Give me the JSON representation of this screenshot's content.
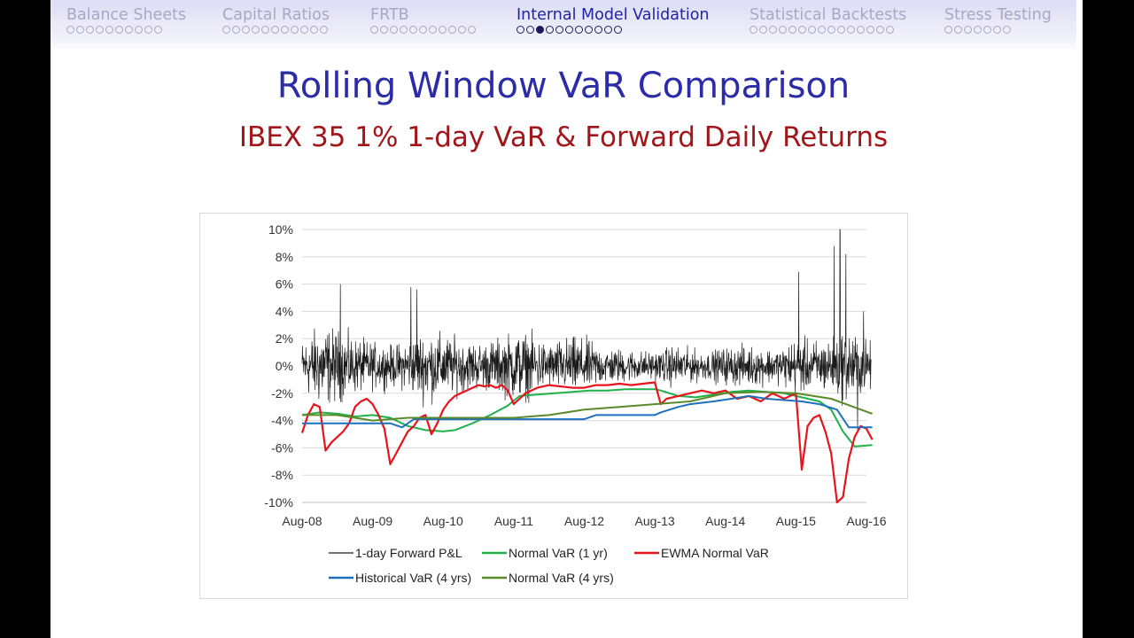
{
  "nav": {
    "sections": [
      {
        "label": "Balance Sheets",
        "dots": 10,
        "filled": -1,
        "active": false
      },
      {
        "label": "Capital Ratios",
        "dots": 11,
        "filled": -1,
        "active": false
      },
      {
        "label": "FRTB",
        "dots": 11,
        "filled": -1,
        "active": false
      },
      {
        "label": "Internal Model Validation",
        "dots": 11,
        "filled": 2,
        "active": true
      },
      {
        "label": "Statistical Backtests",
        "dots": 15,
        "filled": -1,
        "active": false
      },
      {
        "label": "Stress Testing",
        "dots": 7,
        "filled": -1,
        "active": false
      }
    ]
  },
  "slide": {
    "title": "Rolling Window VaR Comparison",
    "subtitle": "IBEX 35 1% 1-day VaR & Forward Daily Returns"
  },
  "colors": {
    "pnl": "#1a1a1a",
    "normal_1yr": "#1fb14b",
    "ewma": "#e8141c",
    "historical_4yr": "#1f6fbf",
    "normal_4yr": "#5a8a2a"
  },
  "chart_data": {
    "type": "line",
    "title": "",
    "xlabel": "",
    "ylabel": "",
    "ylim": [
      -10,
      10
    ],
    "y_unit": "%",
    "y_ticks": [
      "10%",
      "8%",
      "6%",
      "4%",
      "2%",
      "0%",
      "-2%",
      "-4%",
      "-6%",
      "-8%",
      "-10%"
    ],
    "y_tick_values": [
      10,
      8,
      6,
      4,
      2,
      0,
      -2,
      -4,
      -6,
      -8,
      -10
    ],
    "xlim": [
      "2008-08",
      "2016-09"
    ],
    "x_ticks": [
      "Aug-08",
      "Aug-09",
      "Aug-10",
      "Aug-11",
      "Aug-12",
      "Aug-13",
      "Aug-14",
      "Aug-15",
      "Aug-16"
    ],
    "x_tick_values": [
      "2008-08",
      "2009-08",
      "2010-08",
      "2011-08",
      "2012-08",
      "2013-08",
      "2014-08",
      "2015-08",
      "2016-08"
    ],
    "grid": "horizontal",
    "legend_position": "bottom",
    "series": [
      {
        "name": "1-day Forward P&L",
        "color_key": "pnl",
        "volatility_envelope": {
          "x": [
            "2008-08",
            "2008-11",
            "2009-02",
            "2009-05",
            "2009-08",
            "2009-11",
            "2010-02",
            "2010-05",
            "2010-08",
            "2010-11",
            "2011-02",
            "2011-05",
            "2011-08",
            "2011-11",
            "2012-02",
            "2012-05",
            "2012-08",
            "2012-11",
            "2013-02",
            "2013-05",
            "2013-08",
            "2013-11",
            "2014-02",
            "2014-05",
            "2014-08",
            "2014-11",
            "2015-02",
            "2015-05",
            "2015-08",
            "2015-11",
            "2016-02",
            "2016-05",
            "2016-08"
          ],
          "amplitude": [
            1.6,
            2.6,
            2.3,
            1.8,
            1.5,
            1.3,
            1.6,
            2.3,
            2.0,
            1.7,
            1.5,
            1.7,
            2.2,
            2.0,
            1.4,
            1.8,
            1.8,
            1.2,
            1.1,
            1.0,
            0.9,
            1.3,
            1.1,
            0.9,
            1.2,
            1.3,
            1.2,
            1.1,
            1.8,
            1.6,
            1.8,
            2.4,
            1.6
          ]
        },
        "spikes": [
          {
            "x": "2009-02",
            "y": 6.0
          },
          {
            "x": "2010-02",
            "y": 5.8
          },
          {
            "x": "2010-03",
            "y": 5.6
          },
          {
            "x": "2016-03",
            "y": 10.0
          },
          {
            "x": "2016-02",
            "y": 8.8
          },
          {
            "x": "2016-04",
            "y": 8.2
          },
          {
            "x": "2015-08",
            "y": 6.9
          },
          {
            "x": "2016-07",
            "y": 4.0
          },
          {
            "x": "2016-06",
            "y": -4.8
          }
        ]
      },
      {
        "name": "Normal VaR (1 yr)",
        "color_key": "normal_1yr",
        "points": [
          [
            "2008-08",
            -3.6
          ],
          [
            "2008-11",
            -3.4
          ],
          [
            "2009-02",
            -3.5
          ],
          [
            "2009-05",
            -3.7
          ],
          [
            "2009-08",
            -3.6
          ],
          [
            "2009-11",
            -3.8
          ],
          [
            "2010-02",
            -4.4
          ],
          [
            "2010-05",
            -4.7
          ],
          [
            "2010-08",
            -4.8
          ],
          [
            "2010-10",
            -4.7
          ],
          [
            "2011-01",
            -4.2
          ],
          [
            "2011-04",
            -3.6
          ],
          [
            "2011-07",
            -2.9
          ],
          [
            "2011-09",
            -2.2
          ],
          [
            "2011-12",
            -2.1
          ],
          [
            "2012-03",
            -2.0
          ],
          [
            "2012-06",
            -1.9
          ],
          [
            "2012-09",
            -1.8
          ],
          [
            "2012-12",
            -1.8
          ],
          [
            "2013-03",
            -1.7
          ],
          [
            "2013-06",
            -1.7
          ],
          [
            "2013-08",
            -1.7
          ],
          [
            "2013-09",
            -1.8
          ],
          [
            "2013-12",
            -2.2
          ],
          [
            "2014-03",
            -2.3
          ],
          [
            "2014-06",
            -2.1
          ],
          [
            "2014-09",
            -1.9
          ],
          [
            "2014-12",
            -1.8
          ],
          [
            "2015-03",
            -1.9
          ],
          [
            "2015-06",
            -2.0
          ],
          [
            "2015-09",
            -2.3
          ],
          [
            "2015-12",
            -2.6
          ],
          [
            "2016-02",
            -3.2
          ],
          [
            "2016-04",
            -4.8
          ],
          [
            "2016-06",
            -5.9
          ],
          [
            "2016-09",
            -5.8
          ]
        ]
      },
      {
        "name": "EWMA Normal VaR",
        "color_key": "ewma",
        "points": [
          [
            "2008-08",
            -4.9
          ],
          [
            "2008-09",
            -3.6
          ],
          [
            "2008-10",
            -2.8
          ],
          [
            "2008-11",
            -3.0
          ],
          [
            "2008-12",
            -6.2
          ],
          [
            "2009-01",
            -5.6
          ],
          [
            "2009-02",
            -5.2
          ],
          [
            "2009-03",
            -4.8
          ],
          [
            "2009-04",
            -4.2
          ],
          [
            "2009-05",
            -3.0
          ],
          [
            "2009-06",
            -2.6
          ],
          [
            "2009-07",
            -2.4
          ],
          [
            "2009-08",
            -2.8
          ],
          [
            "2009-09",
            -3.6
          ],
          [
            "2009-10",
            -4.6
          ],
          [
            "2009-11",
            -7.2
          ],
          [
            "2009-12",
            -6.4
          ],
          [
            "2010-01",
            -5.6
          ],
          [
            "2010-02",
            -4.8
          ],
          [
            "2010-03",
            -4.4
          ],
          [
            "2010-04",
            -3.8
          ],
          [
            "2010-05",
            -3.6
          ],
          [
            "2010-06",
            -5.0
          ],
          [
            "2010-07",
            -4.2
          ],
          [
            "2010-08",
            -3.2
          ],
          [
            "2010-09",
            -2.6
          ],
          [
            "2010-10",
            -2.2
          ],
          [
            "2010-11",
            -2.0
          ],
          [
            "2010-12",
            -1.8
          ],
          [
            "2011-01",
            -1.6
          ],
          [
            "2011-02",
            -1.4
          ],
          [
            "2011-03",
            -1.5
          ],
          [
            "2011-04",
            -1.4
          ],
          [
            "2011-05",
            -1.6
          ],
          [
            "2011-06",
            -1.4
          ],
          [
            "2011-07",
            -1.8
          ],
          [
            "2011-08",
            -2.8
          ],
          [
            "2011-09",
            -2.4
          ],
          [
            "2011-10",
            -2.0
          ],
          [
            "2011-11",
            -1.8
          ],
          [
            "2011-12",
            -1.6
          ],
          [
            "2012-02",
            -1.4
          ],
          [
            "2012-04",
            -1.5
          ],
          [
            "2012-06",
            -1.6
          ],
          [
            "2012-08",
            -1.6
          ],
          [
            "2012-10",
            -1.4
          ],
          [
            "2012-12",
            -1.4
          ],
          [
            "2013-02",
            -1.3
          ],
          [
            "2013-04",
            -1.4
          ],
          [
            "2013-06",
            -1.3
          ],
          [
            "2013-08",
            -1.2
          ],
          [
            "2013-09",
            -2.8
          ],
          [
            "2013-10",
            -2.4
          ],
          [
            "2013-12",
            -2.2
          ],
          [
            "2014-02",
            -2.0
          ],
          [
            "2014-04",
            -1.8
          ],
          [
            "2014-06",
            -2.0
          ],
          [
            "2014-08",
            -1.8
          ],
          [
            "2014-10",
            -2.4
          ],
          [
            "2014-12",
            -2.2
          ],
          [
            "2015-02",
            -2.6
          ],
          [
            "2015-04",
            -2.0
          ],
          [
            "2015-06",
            -2.4
          ],
          [
            "2015-08",
            -2.0
          ],
          [
            "2015-09",
            -7.6
          ],
          [
            "2015-10",
            -4.4
          ],
          [
            "2015-11",
            -3.8
          ],
          [
            "2015-12",
            -3.6
          ],
          [
            "2016-01",
            -4.8
          ],
          [
            "2016-02",
            -6.4
          ],
          [
            "2016-03",
            -10.0
          ],
          [
            "2016-04",
            -9.6
          ],
          [
            "2016-05",
            -6.8
          ],
          [
            "2016-06",
            -5.2
          ],
          [
            "2016-07",
            -4.4
          ],
          [
            "2016-08",
            -4.6
          ],
          [
            "2016-09",
            -5.4
          ]
        ]
      },
      {
        "name": "Historical VaR (4 yrs)",
        "color_key": "historical_4yr",
        "points": [
          [
            "2008-08",
            -4.2
          ],
          [
            "2009-08",
            -4.2
          ],
          [
            "2009-11",
            -4.2
          ],
          [
            "2010-01",
            -4.5
          ],
          [
            "2010-03",
            -3.9
          ],
          [
            "2011-08",
            -3.9
          ],
          [
            "2012-08",
            -3.9
          ],
          [
            "2012-10",
            -3.6
          ],
          [
            "2013-08",
            -3.6
          ],
          [
            "2013-09",
            -3.4
          ],
          [
            "2013-12",
            -3.0
          ],
          [
            "2014-02",
            -2.8
          ],
          [
            "2014-06",
            -2.6
          ],
          [
            "2014-09",
            -2.4
          ],
          [
            "2014-12",
            -2.2
          ],
          [
            "2015-03",
            -2.4
          ],
          [
            "2015-09",
            -2.6
          ],
          [
            "2015-12",
            -2.8
          ],
          [
            "2016-03",
            -3.2
          ],
          [
            "2016-05",
            -4.5
          ],
          [
            "2016-09",
            -4.5
          ]
        ]
      },
      {
        "name": "Normal VaR (4 yrs)",
        "color_key": "normal_4yr",
        "points": [
          [
            "2008-08",
            -3.6
          ],
          [
            "2009-02",
            -3.6
          ],
          [
            "2009-08",
            -4.0
          ],
          [
            "2010-02",
            -3.8
          ],
          [
            "2010-08",
            -3.8
          ],
          [
            "2011-02",
            -3.8
          ],
          [
            "2011-08",
            -3.8
          ],
          [
            "2012-02",
            -3.6
          ],
          [
            "2012-08",
            -3.2
          ],
          [
            "2013-02",
            -3.0
          ],
          [
            "2013-08",
            -2.8
          ],
          [
            "2014-02",
            -2.6
          ],
          [
            "2014-08",
            -2.0
          ],
          [
            "2015-02",
            -1.9
          ],
          [
            "2015-08",
            -2.0
          ],
          [
            "2016-02",
            -2.4
          ],
          [
            "2016-09",
            -3.5
          ]
        ]
      }
    ]
  }
}
